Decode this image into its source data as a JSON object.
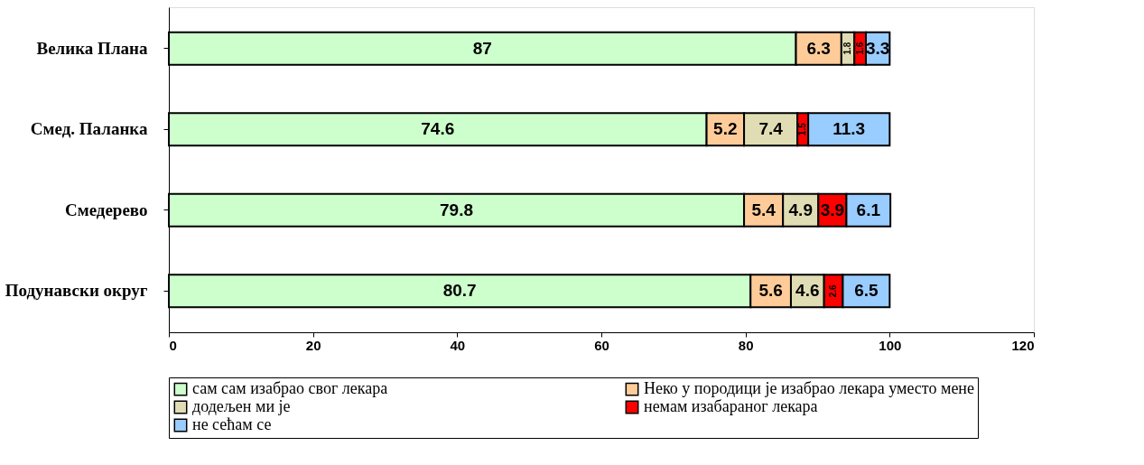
{
  "chart_data": {
    "type": "bar",
    "orientation": "horizontal",
    "stacked": true,
    "data_labels": true,
    "categories": [
      "Велика Плана",
      "Смед. Паланка",
      "Смедерево",
      "Подунавски округ"
    ],
    "series": [
      {
        "name": "сам сам изабрао свог лекара",
        "color": "#ccffcc",
        "values": [
          87,
          74.6,
          79.8,
          80.7
        ]
      },
      {
        "name": "Неко у породици је изабрао лекара уместо мене",
        "color": "#ffcc99",
        "values": [
          6.3,
          5.2,
          5.4,
          5.6
        ]
      },
      {
        "name": "додељен ми је",
        "color": "#e0ddb4",
        "values": [
          1.8,
          7.4,
          4.9,
          4.6
        ]
      },
      {
        "name": "немам изабараног лекара",
        "color": "#ff0000",
        "values": [
          1.6,
          1.5,
          3.9,
          2.6
        ]
      },
      {
        "name": "не сећам се",
        "color": "#99ccff",
        "values": [
          3.3,
          11.3,
          6.1,
          6.5
        ]
      }
    ],
    "xlim": [
      0,
      120
    ],
    "xticks": [
      0,
      20,
      40,
      60,
      80,
      100,
      120
    ],
    "grid": false,
    "legend": "bottom"
  }
}
